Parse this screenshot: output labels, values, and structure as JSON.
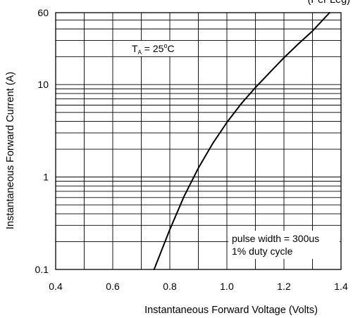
{
  "chart_data": {
    "type": "line",
    "title": "",
    "xlabel": "Instantaneous Forward Voltage (Volts)",
    "ylabel": "Instantaneous Forward Current (A)",
    "xlim": [
      0.4,
      1.4
    ],
    "ylim": [
      0.1,
      60
    ],
    "yscale": "log",
    "x_ticks": [
      "0.4",
      "0.6",
      "0.8",
      "1.0",
      "1.2",
      "1.4"
    ],
    "y_ticks": [
      "0.1",
      "1",
      "10",
      "60"
    ],
    "grid": true,
    "annotation_top_right": "(Per Leg)",
    "temperature_label": {
      "prefix": "T",
      "subscript": "A",
      "suffix": " = 25",
      "degree": "o",
      "unit": "C"
    },
    "pulse_note_line1": "pulse width = 300us",
    "pulse_note_line2": "1% duty cycle",
    "series": [
      {
        "x": [
          0.745,
          0.8,
          0.85,
          0.9,
          0.95,
          1.0,
          1.05,
          1.1,
          1.15,
          1.2,
          1.25,
          1.3,
          1.36
        ],
        "y": [
          0.1,
          0.27,
          0.62,
          1.25,
          2.3,
          3.9,
          6.2,
          9.3,
          13.5,
          19.5,
          27.5,
          38,
          60
        ]
      }
    ]
  }
}
